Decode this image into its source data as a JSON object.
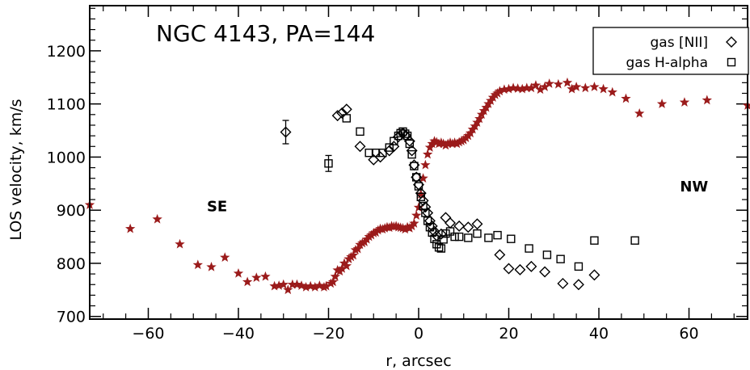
{
  "chart_data": {
    "type": "scatter",
    "title": "NGC 4143, PA=144",
    "xlabel": "r, arcsec",
    "ylabel": "LOS velocity, km/s",
    "xlim": [
      -73,
      73
    ],
    "ylim": [
      695,
      1285
    ],
    "x_ticks": [
      -60,
      -40,
      -20,
      0,
      20,
      40,
      60
    ],
    "y_ticks": [
      700,
      800,
      900,
      1000,
      1100,
      1200
    ],
    "x_tick_labels": [
      "−60",
      "−40",
      "−20",
      "0",
      "20",
      "40",
      "60"
    ],
    "y_tick_labels": [
      "700",
      "800",
      "900",
      "1000",
      "1100",
      "1200"
    ],
    "legend_placement": "top-right",
    "annotations": [
      {
        "text": "SE",
        "x": -47,
        "y": 898
      },
      {
        "text": "NW",
        "x": 58,
        "y": 1110
      }
    ],
    "colors": {
      "stars": "#9b1b1b",
      "ink": "#000000"
    },
    "series": [
      {
        "marker": "star",
        "color": "#9b1b1b",
        "points": [
          [
            -73,
            910
          ],
          [
            -64,
            865
          ],
          [
            -58,
            883
          ],
          [
            -53,
            836
          ],
          [
            -49,
            797
          ],
          [
            -46,
            793
          ],
          [
            -43,
            811
          ],
          [
            -40,
            781
          ],
          [
            -38,
            765
          ],
          [
            -36,
            773
          ],
          [
            -34,
            775
          ],
          [
            -32,
            757
          ],
          [
            -31,
            758
          ],
          [
            -30,
            760
          ],
          [
            -29,
            750
          ],
          [
            -28,
            760
          ],
          [
            -27,
            760
          ],
          [
            -26,
            758
          ],
          [
            -25,
            755
          ],
          [
            -24,
            757
          ],
          [
            -23,
            755
          ],
          [
            -22,
            758
          ],
          [
            -21,
            755
          ],
          [
            -20.5,
            757
          ],
          [
            -19.5,
            762
          ],
          [
            -19,
            765
          ],
          [
            -18.5,
            775
          ],
          [
            -18,
            787
          ],
          [
            -17.5,
            785
          ],
          [
            -17,
            790
          ],
          [
            -16.5,
            800
          ],
          [
            -16,
            795
          ],
          [
            -15.5,
            808
          ],
          [
            -15,
            812
          ],
          [
            -14.5,
            815
          ],
          [
            -14,
            825
          ],
          [
            -13.5,
            827
          ],
          [
            -13,
            835
          ],
          [
            -12.5,
            838
          ],
          [
            -12,
            840
          ],
          [
            -11.5,
            845
          ],
          [
            -11,
            850
          ],
          [
            -10.5,
            853
          ],
          [
            -10,
            857
          ],
          [
            -9.5,
            858
          ],
          [
            -9,
            862
          ],
          [
            -8.5,
            865
          ],
          [
            -8,
            864
          ],
          [
            -7.5,
            866
          ],
          [
            -7,
            868
          ],
          [
            -6.5,
            867
          ],
          [
            -6,
            870
          ],
          [
            -5.5,
            869
          ],
          [
            -5,
            870
          ],
          [
            -4.5,
            868
          ],
          [
            -4,
            867
          ],
          [
            -3.5,
            866
          ],
          [
            -3,
            864
          ],
          [
            -2.5,
            868
          ],
          [
            -2,
            866
          ],
          [
            -1.5,
            870
          ],
          [
            -1,
            875
          ],
          [
            -0.5,
            890
          ],
          [
            0,
            905
          ],
          [
            0.5,
            930
          ],
          [
            1,
            960
          ],
          [
            1.5,
            985
          ],
          [
            2,
            1005
          ],
          [
            2.5,
            1018
          ],
          [
            3,
            1025
          ],
          [
            3.5,
            1030
          ],
          [
            4,
            1028
          ],
          [
            4.5,
            1025
          ],
          [
            5,
            1027
          ],
          [
            5.5,
            1025
          ],
          [
            6,
            1022
          ],
          [
            6.5,
            1025
          ],
          [
            7,
            1027
          ],
          [
            7.5,
            1025
          ],
          [
            8,
            1027
          ],
          [
            8.5,
            1025
          ],
          [
            9,
            1028
          ],
          [
            9.5,
            1030
          ],
          [
            10,
            1032
          ],
          [
            10.5,
            1036
          ],
          [
            11,
            1040
          ],
          [
            11.5,
            1045
          ],
          [
            12,
            1052
          ],
          [
            12.5,
            1058
          ],
          [
            13,
            1065
          ],
          [
            13.5,
            1072
          ],
          [
            14,
            1080
          ],
          [
            14.5,
            1087
          ],
          [
            15,
            1093
          ],
          [
            15.5,
            1100
          ],
          [
            16,
            1106
          ],
          [
            16.5,
            1112
          ],
          [
            17,
            1117
          ],
          [
            17.5,
            1120
          ],
          [
            18,
            1124
          ],
          [
            19,
            1127
          ],
          [
            20,
            1128
          ],
          [
            21,
            1130
          ],
          [
            22,
            1129
          ],
          [
            23,
            1128
          ],
          [
            24,
            1130
          ],
          [
            25,
            1130
          ],
          [
            26,
            1135
          ],
          [
            27,
            1127
          ],
          [
            28,
            1132
          ],
          [
            29,
            1138
          ],
          [
            31,
            1137
          ],
          [
            33,
            1140
          ],
          [
            34,
            1128
          ],
          [
            35,
            1132
          ],
          [
            37,
            1130
          ],
          [
            39,
            1132
          ],
          [
            41,
            1128
          ],
          [
            43,
            1122
          ],
          [
            46,
            1110
          ],
          [
            49,
            1082
          ],
          [
            54,
            1100
          ],
          [
            59,
            1103
          ],
          [
            64,
            1107
          ],
          [
            73,
            1097
          ]
        ]
      },
      {
        "name": "gas [NII]",
        "marker": "diamond",
        "color": "#000000",
        "points": [
          [
            -29.5,
            1047,
            22
          ],
          [
            -18,
            1078,
            0
          ],
          [
            -17,
            1083,
            0
          ],
          [
            -16,
            1090,
            0
          ],
          [
            -13,
            1020,
            0
          ],
          [
            -10,
            995,
            0
          ],
          [
            -8.5,
            1000,
            0
          ],
          [
            -6.5,
            1012,
            0
          ],
          [
            -5.5,
            1020,
            0
          ],
          [
            -4.5,
            1038,
            0
          ],
          [
            -3.5,
            1045,
            0
          ],
          [
            -2.8,
            1040,
            0
          ],
          [
            -2,
            1030,
            0
          ],
          [
            -1.5,
            1012,
            0
          ],
          [
            -1,
            985,
            0
          ],
          [
            -0.5,
            962,
            0
          ],
          [
            0,
            948,
            0
          ],
          [
            0.5,
            932,
            0
          ],
          [
            1,
            918,
            0
          ],
          [
            1.5,
            906,
            0
          ],
          [
            2,
            895,
            0
          ],
          [
            2.5,
            880,
            0
          ],
          [
            3,
            870,
            0
          ],
          [
            3.5,
            860,
            0
          ],
          [
            4,
            852,
            0
          ],
          [
            5,
            855,
            0
          ],
          [
            6,
            886,
            0
          ],
          [
            7,
            876,
            0
          ],
          [
            9,
            870,
            0
          ],
          [
            11,
            868,
            0
          ],
          [
            13,
            874,
            0
          ],
          [
            18,
            816,
            0
          ],
          [
            20,
            790,
            0
          ],
          [
            22.5,
            788,
            0
          ],
          [
            25,
            794,
            0
          ],
          [
            28,
            784,
            0
          ],
          [
            32,
            762,
            0
          ],
          [
            35.5,
            760,
            0
          ],
          [
            39,
            778,
            0
          ]
        ]
      },
      {
        "name": "gas H-alpha",
        "marker": "square",
        "color": "#000000",
        "points": [
          [
            -20,
            988,
            15
          ],
          [
            -16,
            1073,
            0
          ],
          [
            -13,
            1048,
            0
          ],
          [
            -11,
            1008,
            0
          ],
          [
            -9.5,
            1008,
            0
          ],
          [
            -8,
            1008,
            0
          ],
          [
            -6.5,
            1018,
            0
          ],
          [
            -5.5,
            1030,
            0
          ],
          [
            -4.5,
            1040,
            0
          ],
          [
            -4,
            1045,
            0
          ],
          [
            -3.5,
            1048,
            0
          ],
          [
            -3,
            1044,
            0
          ],
          [
            -2.5,
            1040,
            0
          ],
          [
            -2,
            1025,
            0
          ],
          [
            -1.5,
            1005,
            0
          ],
          [
            -1,
            983,
            0
          ],
          [
            -0.5,
            962,
            0
          ],
          [
            0,
            945,
            0
          ],
          [
            0.5,
            925,
            0
          ],
          [
            1,
            908,
            0
          ],
          [
            1.5,
            895,
            0
          ],
          [
            2,
            880,
            0
          ],
          [
            2.5,
            868,
            0
          ],
          [
            3,
            858,
            0
          ],
          [
            3.5,
            846,
            0
          ],
          [
            4,
            836,
            0
          ],
          [
            4.5,
            830,
            0
          ],
          [
            5,
            828,
            0
          ],
          [
            5.5,
            845,
            0
          ],
          [
            6,
            856,
            0
          ],
          [
            7,
            860,
            0
          ],
          [
            8,
            850,
            0
          ],
          [
            9,
            850,
            0
          ],
          [
            11,
            848,
            0
          ],
          [
            13,
            856,
            0
          ],
          [
            15.5,
            848,
            0
          ],
          [
            17.5,
            853,
            0
          ],
          [
            20.5,
            846,
            0
          ],
          [
            24.5,
            828,
            0
          ],
          [
            28.5,
            816,
            0
          ],
          [
            31.5,
            808,
            0
          ],
          [
            35.5,
            794,
            0
          ],
          [
            39,
            843,
            0
          ],
          [
            48,
            843,
            0
          ]
        ]
      }
    ]
  }
}
